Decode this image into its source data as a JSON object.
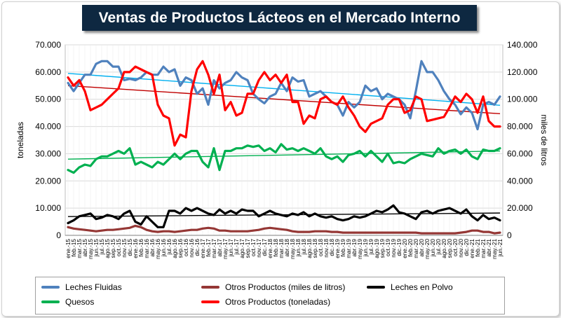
{
  "chart_data": {
    "type": "line",
    "title": "Ventas de Productos Lácteos en el Mercado Interno",
    "ylabel_left": "toneladas",
    "ylabel_right": "miles de litros",
    "ylim_left": [
      0,
      70000
    ],
    "ylim_right": [
      0,
      140000
    ],
    "yticks_left": [
      "0",
      "10.000",
      "20.000",
      "30.000",
      "40.000",
      "50.000",
      "60.000",
      "70.000"
    ],
    "yticks_right": [
      "0",
      "20.000",
      "40.000",
      "60.000",
      "80.000",
      "100.000",
      "120.000",
      "140.000"
    ],
    "grid": true,
    "legend_position": "bottom",
    "categories": [
      "ene.-15",
      "feb.-15",
      "mar.-15",
      "abr.-15",
      "may.-15",
      "jun.-15",
      "jul.-15",
      "ago.-15",
      "sep.-15",
      "oct.-15",
      "nov.-15",
      "dic.-15",
      "ene.-16",
      "feb.-16",
      "mar.-16",
      "abr.-16",
      "may.-16",
      "jun.-16",
      "jul.-16",
      "ago.-16",
      "sep.-16",
      "oct.-16",
      "nov.-16",
      "dic.-16",
      "ene.-17",
      "feb.-17",
      "mar.-17",
      "abr.-17",
      "may.-17",
      "jun.-17",
      "jul.-17",
      "ago.-17",
      "sep.-17",
      "oct.-17",
      "nov.-17",
      "dic.-17",
      "ene.-18",
      "feb.-18",
      "mar.-18",
      "abr.-18",
      "may.-18",
      "jun.-18",
      "jul.-18",
      "ago.-18",
      "sep.-18",
      "oct.-18",
      "nov.-18",
      "dic.-18",
      "ene.-19",
      "feb.-19",
      "mar.-19",
      "abr.-19",
      "may.-19",
      "jun.-19",
      "jul.-19",
      "ago.-19",
      "sep.-19",
      "oct.-19",
      "nov.-19",
      "dic.-19",
      "ene.-20",
      "feb.-20",
      "mar.-20",
      "abr.-20",
      "may.-20",
      "jun.-20",
      "jul.-20",
      "ago.-20",
      "sep.-20",
      "oct.-20",
      "nov.-20",
      "dic.-20",
      "ene.-21",
      "feb.-21",
      "mar.-21",
      "abr.-21",
      "may.-21",
      "jun.-21"
    ],
    "series": [
      {
        "name": "Leches Fluidas",
        "axis": "left",
        "color": "#4f81bd",
        "values": [
          56000,
          53000,
          56000,
          59000,
          59000,
          63000,
          64000,
          64000,
          62000,
          62000,
          57000,
          57500,
          57000,
          58000,
          60000,
          59000,
          59000,
          62000,
          60000,
          61000,
          55000,
          58000,
          57000,
          52000,
          54000,
          48000,
          57000,
          54000,
          56000,
          57000,
          60000,
          58000,
          57000,
          52000,
          50000,
          48500,
          51000,
          52000,
          56000,
          53000,
          58000,
          56500,
          57000,
          51000,
          52000,
          53000,
          51000,
          49000,
          48000,
          44000,
          49000,
          47000,
          49000,
          55000,
          53000,
          54000,
          50000,
          52000,
          51000,
          50000,
          48000,
          43000,
          53000,
          64000,
          60000,
          60000,
          57000,
          53000,
          50000,
          48000,
          44500,
          47000,
          45000,
          39000,
          48000,
          49000,
          48000,
          51000
        ]
      },
      {
        "name": "Otros Productos (miles de litros)",
        "axis": "right",
        "color": "#953735",
        "values": [
          6000,
          5000,
          4500,
          4000,
          3500,
          3000,
          3500,
          4000,
          4000,
          4500,
          5000,
          5500,
          7000,
          6000,
          4000,
          3000,
          2500,
          3000,
          3000,
          2500,
          3000,
          3500,
          4000,
          4000,
          5000,
          5500,
          5000,
          3500,
          3500,
          3000,
          3000,
          3000,
          3000,
          3500,
          4000,
          5000,
          5500,
          5000,
          4500,
          4000,
          3000,
          2500,
          2500,
          2500,
          3000,
          3000,
          3000,
          2500,
          2500,
          2000,
          2000,
          2000,
          2000,
          2000,
          2000,
          2000,
          2000,
          2000,
          2000,
          2000,
          2000,
          2000,
          2000,
          1500,
          1500,
          1500,
          1500,
          1500,
          1500,
          1500,
          2000,
          2500,
          3500,
          3500,
          2500,
          2500,
          1500,
          2000
        ]
      },
      {
        "name": "Leches en Polvo",
        "axis": "left",
        "color": "#000000",
        "values": [
          4500,
          5500,
          7000,
          7500,
          8000,
          6000,
          6500,
          7500,
          7000,
          6000,
          8000,
          9000,
          5000,
          4000,
          7000,
          5000,
          3000,
          3000,
          9000,
          9000,
          8000,
          10000,
          9000,
          10000,
          9000,
          8000,
          7500,
          9500,
          8000,
          9000,
          8000,
          9500,
          9000,
          9000,
          7000,
          8000,
          9000,
          8000,
          7500,
          7000,
          8000,
          7500,
          8500,
          7000,
          8000,
          7000,
          6500,
          7000,
          6000,
          5500,
          6000,
          7000,
          6500,
          7000,
          8000,
          9000,
          8500,
          9500,
          11000,
          8500,
          8000,
          7000,
          6000,
          8500,
          9000,
          8000,
          9000,
          9500,
          10000,
          9000,
          8000,
          9500,
          7000,
          5500,
          7500,
          6000,
          6500,
          5500
        ]
      },
      {
        "name": "Quesos",
        "axis": "left",
        "color": "#00b050",
        "values": [
          24000,
          23000,
          25000,
          26000,
          25500,
          28000,
          29000,
          29000,
          30000,
          31000,
          30000,
          32000,
          26000,
          27000,
          26000,
          25000,
          27000,
          26000,
          28000,
          30000,
          28000,
          30000,
          31000,
          31000,
          27000,
          25000,
          32000,
          24000,
          31000,
          31000,
          32000,
          32000,
          33000,
          32500,
          33000,
          31000,
          32000,
          30500,
          33500,
          31500,
          32000,
          31000,
          32000,
          31000,
          30000,
          32000,
          29000,
          28000,
          29000,
          27000,
          29500,
          30000,
          31000,
          29000,
          31000,
          29000,
          27000,
          30000,
          26500,
          27000,
          26500,
          28000,
          29000,
          30000,
          29500,
          29000,
          32000,
          30000,
          31000,
          31500,
          30000,
          31500,
          29000,
          28000,
          31500,
          31000,
          31000,
          32000
        ]
      },
      {
        "name": "Otros Productos (toneladas)",
        "axis": "left",
        "color": "#ff0000",
        "values": [
          58000,
          55000,
          57000,
          53000,
          46000,
          47000,
          48000,
          50000,
          52000,
          54000,
          60000,
          60000,
          62000,
          61000,
          60000,
          59000,
          48000,
          44000,
          43000,
          33000,
          37000,
          36000,
          53000,
          61000,
          64000,
          59000,
          52000,
          59000,
          46000,
          49000,
          44000,
          45000,
          52000,
          52000,
          57000,
          60000,
          57000,
          59000,
          56000,
          59000,
          49000,
          49000,
          41000,
          44000,
          43000,
          50000,
          51000,
          49000,
          48000,
          51000,
          47000,
          44000,
          40000,
          38000,
          41000,
          42000,
          43000,
          48000,
          50000,
          50000,
          45000,
          46000,
          51000,
          50000,
          42000,
          42500,
          43000,
          43500,
          47000,
          51000,
          49000,
          52000,
          50000,
          45000,
          51000,
          42000,
          40000,
          40000
        ]
      }
    ],
    "trendlines": [
      {
        "of": "Leches Fluidas",
        "axis": "left",
        "color": "#00b0f0",
        "start": 59500,
        "end": 47800
      },
      {
        "of": "Otros Productos (toneladas)",
        "axis": "left",
        "color": "#c00000",
        "start": 55000,
        "end": 44700
      },
      {
        "of": "Quesos",
        "axis": "left",
        "color": "#00b050",
        "start": 28000,
        "end": 31000
      },
      {
        "of": "Leches en Polvo",
        "axis": "left",
        "color": "#000000",
        "start": 6900,
        "end": 8200
      }
    ]
  },
  "legend": [
    {
      "label": "Leches Fluidas",
      "color": "#4f81bd"
    },
    {
      "label": "Otros Productos (miles de litros)",
      "color": "#953735"
    },
    {
      "label": "Leches en Polvo",
      "color": "#000000"
    },
    {
      "label": "Quesos",
      "color": "#00b050"
    },
    {
      "label": "Otros Productos (toneladas)",
      "color": "#ff0000"
    }
  ]
}
